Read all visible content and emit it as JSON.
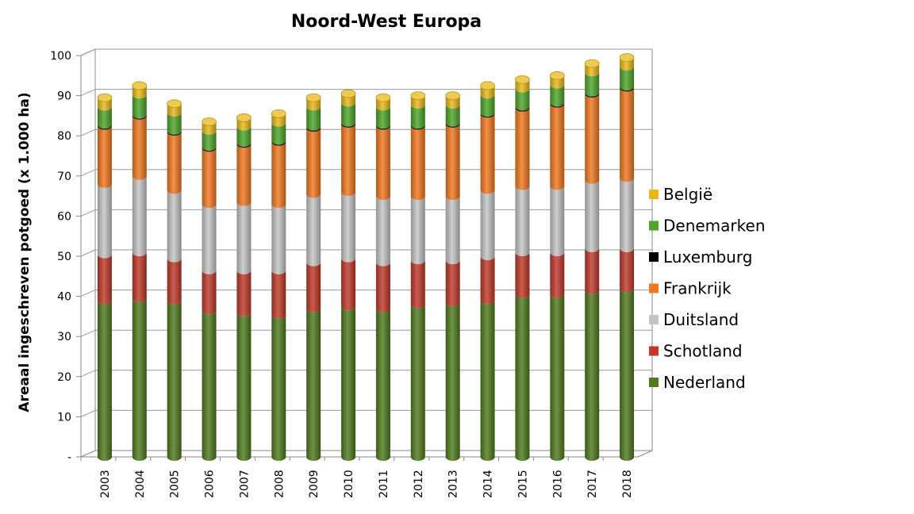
{
  "chart_data": {
    "type": "bar",
    "stacked": true,
    "title": "Noord-West Europa",
    "xlabel": "",
    "ylabel": "Areaal ingeschreven potgoed (x 1.000 ha)",
    "ylim": [
      0,
      100
    ],
    "yticks": [
      "-",
      "10",
      "20",
      "30",
      "40",
      "50",
      "60",
      "70",
      "80",
      "90",
      "100"
    ],
    "grid": true,
    "legend_position": "right",
    "categories": [
      "2003",
      "2004",
      "2005",
      "2006",
      "2007",
      "2008",
      "2009",
      "2010",
      "2011",
      "2012",
      "2013",
      "2014",
      "2015",
      "2016",
      "2017",
      "2018"
    ],
    "series": [
      {
        "name": "Nederland",
        "color": "#4f7a1e",
        "values": [
          39,
          39.5,
          39,
          36.5,
          36,
          35.5,
          37,
          37.5,
          37,
          38,
          38.5,
          39,
          40.5,
          40.5,
          41.5,
          42
        ]
      },
      {
        "name": "Schotland",
        "color": "#c0392b",
        "values": [
          11.5,
          11.5,
          10.5,
          10,
          10.5,
          11,
          11.5,
          12,
          11.5,
          11,
          10.5,
          11,
          10.5,
          10.5,
          10.5,
          10
        ]
      },
      {
        "name": "Duitsland",
        "color": "#c4c4c4",
        "values": [
          17.5,
          19,
          17,
          16.5,
          17,
          16.5,
          17,
          16.5,
          16.5,
          16,
          16,
          16.5,
          16.5,
          16.5,
          17,
          17.5
        ]
      },
      {
        "name": "Frankrijk",
        "color": "#f07820",
        "values": [
          14.5,
          15,
          14.5,
          14,
          14.5,
          15.5,
          16.5,
          17,
          17.5,
          17.5,
          18,
          19,
          19.5,
          20.5,
          21.5,
          22.5
        ]
      },
      {
        "name": "Luxemburg",
        "color": "#000000",
        "values": [
          0.3,
          0.3,
          0.3,
          0.3,
          0.3,
          0.3,
          0.3,
          0.3,
          0.3,
          0.3,
          0.3,
          0.3,
          0.3,
          0.3,
          0.3,
          0.3
        ]
      },
      {
        "name": "Denemarken",
        "color": "#4ea52a",
        "values": [
          4.5,
          5,
          4.5,
          4,
          4,
          4.5,
          5,
          5,
          4.5,
          5,
          4.5,
          4.5,
          4.5,
          4.5,
          5,
          5
        ]
      },
      {
        "name": "België",
        "color": "#e8b81a",
        "values": [
          2.2,
          2.2,
          2.2,
          2.2,
          2.2,
          2.2,
          2.2,
          2.2,
          2.2,
          2.2,
          2.2,
          2.2,
          2.2,
          2.2,
          2.2,
          2.2
        ]
      }
    ],
    "legend_order": [
      "België",
      "Denemarken",
      "Luxemburg",
      "Frankrijk",
      "Duitsland",
      "Schotland",
      "Nederland"
    ]
  }
}
